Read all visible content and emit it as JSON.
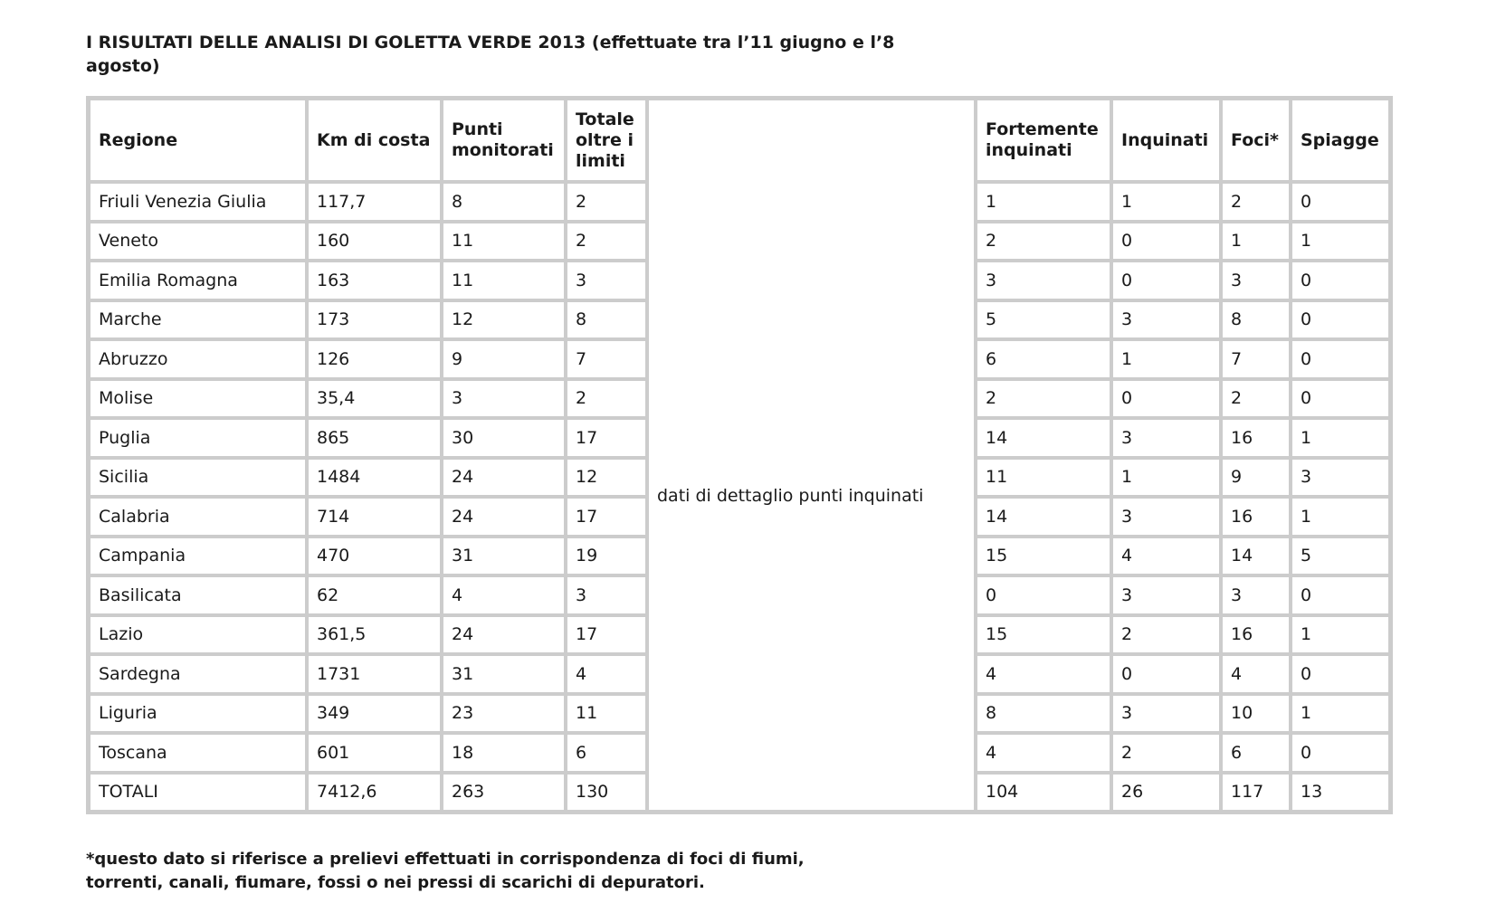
{
  "title": "I RISULTATI DELLE ANALISI DI GOLETTA VERDE 2013 (effettuate tra l’11 giugno e l’8 agosto)",
  "table": {
    "headers": [
      "Regione",
      "Km di costa",
      "Punti monitorati",
      "Totale oltre i limiti",
      "",
      "Fortemente inquinati",
      "Inquinati",
      "Foci*",
      "Spiagge"
    ],
    "detail_label": "dati di dettaglio punti inquinati",
    "rows": [
      [
        "Friuli Venezia Giulia",
        "117,7",
        "8",
        "2",
        "1",
        "1",
        "2",
        "0"
      ],
      [
        "Veneto",
        "160",
        "11",
        "2",
        "2",
        "0",
        "1",
        "1"
      ],
      [
        "Emilia Romagna",
        "163",
        "11",
        "3",
        "3",
        "0",
        "3",
        "0"
      ],
      [
        "Marche",
        "173",
        "12",
        "8",
        "5",
        "3",
        "8",
        "0"
      ],
      [
        "Abruzzo",
        "126",
        "9",
        "7",
        "6",
        "1",
        "7",
        "0"
      ],
      [
        "Molise",
        "35,4",
        "3",
        "2",
        "2",
        "0",
        "2",
        "0"
      ],
      [
        "Puglia",
        "865",
        "30",
        "17",
        "14",
        "3",
        "16",
        "1"
      ],
      [
        "Sicilia",
        "1484",
        "24",
        "12",
        "11",
        "1",
        "9",
        "3"
      ],
      [
        "Calabria",
        "714",
        "24",
        "17",
        "14",
        "3",
        "16",
        "1"
      ],
      [
        "Campania",
        "470",
        "31",
        "19",
        "15",
        "4",
        "14",
        "5"
      ],
      [
        "Basilicata",
        "62",
        "4",
        "3",
        "0",
        "3",
        "3",
        "0"
      ],
      [
        "Lazio",
        "361,5",
        "24",
        "17",
        "15",
        "2",
        "16",
        "1"
      ],
      [
        "Sardegna",
        "1731",
        "31",
        "4",
        "4",
        "0",
        "4",
        "0"
      ],
      [
        "Liguria",
        "349",
        "23",
        "11",
        "8",
        "3",
        "10",
        "1"
      ],
      [
        "Toscana",
        "601",
        "18",
        "6",
        "4",
        "2",
        "6",
        "0"
      ]
    ],
    "totals": [
      "TOTALI",
      "7412,6",
      "263",
      "130",
      "104",
      "26",
      "117",
      "13"
    ]
  },
  "footnote": "*questo dato si riferisce a prelievi effettuati in corrispondenza di foci di fiumi, torrenti, canali, fiumare, fossi o nei pressi di scarichi di depuratori."
}
